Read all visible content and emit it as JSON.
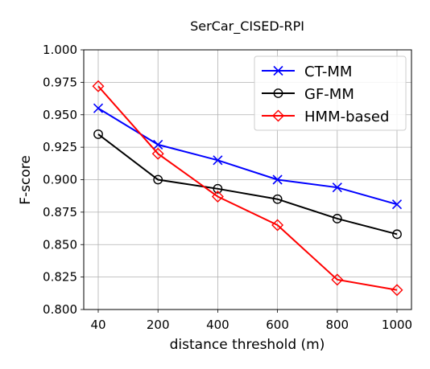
{
  "chart_data": {
    "type": "line",
    "title": "SerCar_CISED-RPI",
    "xlabel": "distance threshold (m)",
    "ylabel": "F-score",
    "x": [
      "40",
      "200",
      "400",
      "600",
      "800",
      "1000"
    ],
    "ylim": [
      0.8,
      1.0
    ],
    "yticks": [
      "0.800",
      "0.825",
      "0.850",
      "0.875",
      "0.900",
      "0.925",
      "0.950",
      "0.975",
      "1.000"
    ],
    "grid": true,
    "legend_position": "top-right",
    "series": [
      {
        "name": "CT-MM",
        "color": "#0000ff",
        "marker": "x",
        "values": [
          0.955,
          0.927,
          0.915,
          0.9,
          0.894,
          0.881
        ]
      },
      {
        "name": "GF-MM",
        "color": "#000000",
        "marker": "circle",
        "values": [
          0.935,
          0.9,
          0.893,
          0.885,
          0.87,
          0.858
        ]
      },
      {
        "name": "HMM-based",
        "color": "#ff0000",
        "marker": "diamond",
        "values": [
          0.972,
          0.92,
          0.887,
          0.865,
          0.823,
          0.815
        ]
      }
    ]
  }
}
